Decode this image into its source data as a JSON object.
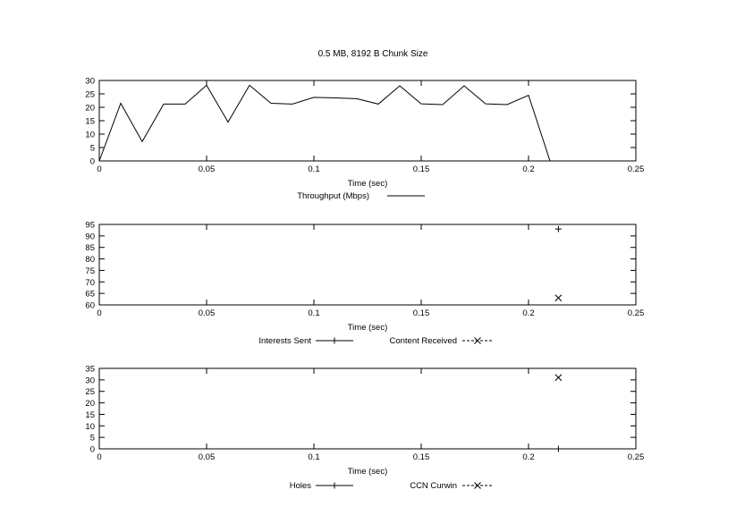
{
  "title": "0.5 MB, 8192 B Chunk Size",
  "chart_data": [
    {
      "type": "line",
      "xlabel": "Time (sec)",
      "ylabel": "",
      "xlim": [
        0,
        0.25
      ],
      "ylim": [
        0,
        30
      ],
      "xticks": [
        0,
        0.05,
        0.1,
        0.15,
        0.2,
        0.25
      ],
      "yticks": [
        0,
        5,
        10,
        15,
        20,
        25,
        30
      ],
      "grid": false,
      "legend_position": "bottom-center",
      "series": [
        {
          "name": "Throughput (Mbps)",
          "style": "line",
          "x": [
            0,
            0.01,
            0.02,
            0.03,
            0.04,
            0.05,
            0.06,
            0.07,
            0.08,
            0.09,
            0.1,
            0.11,
            0.12,
            0.13,
            0.14,
            0.15,
            0.16,
            0.17,
            0.18,
            0.19,
            0.2,
            0.21
          ],
          "y": [
            0,
            21.5,
            7.2,
            21.2,
            21.2,
            28.2,
            14.5,
            28.2,
            21.5,
            21.2,
            23.7,
            23.5,
            23.2,
            21.2,
            28.0,
            21.3,
            21.0,
            28.0,
            21.3,
            21.0,
            24.5,
            0
          ]
        }
      ]
    },
    {
      "type": "scatter",
      "xlabel": "Time (sec)",
      "ylabel": "",
      "xlim": [
        0,
        0.25
      ],
      "ylim": [
        60,
        95
      ],
      "xticks": [
        0,
        0.05,
        0.1,
        0.15,
        0.2,
        0.25
      ],
      "yticks": [
        60,
        65,
        70,
        75,
        80,
        85,
        90,
        95
      ],
      "grid": false,
      "legend_position": "bottom-center",
      "series": [
        {
          "name": "Interests Sent",
          "marker": "plus",
          "x": [
            0.211
          ],
          "y": [
            93
          ]
        },
        {
          "name": "Content Received",
          "marker": "cross",
          "x": [
            0.211
          ],
          "y": [
            63
          ]
        }
      ]
    },
    {
      "type": "scatter",
      "xlabel": "Time (sec)",
      "ylabel": "",
      "xlim": [
        0,
        0.25
      ],
      "ylim": [
        0,
        35
      ],
      "xticks": [
        0,
        0.05,
        0.1,
        0.15,
        0.2,
        0.25
      ],
      "yticks": [
        0,
        5,
        10,
        15,
        20,
        25,
        30,
        35
      ],
      "grid": false,
      "legend_position": "bottom-center",
      "series": [
        {
          "name": "Holes",
          "marker": "plus",
          "x": [
            0.211
          ],
          "y": [
            0
          ]
        },
        {
          "name": "CCN Curwin",
          "marker": "cross",
          "x": [
            0.211
          ],
          "y": [
            31
          ]
        }
      ]
    }
  ]
}
